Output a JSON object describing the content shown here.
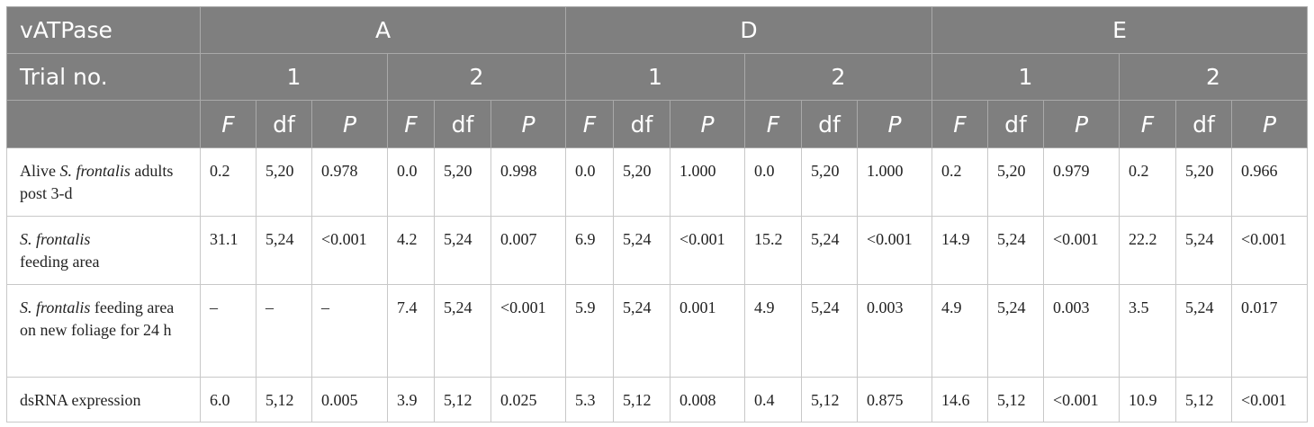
{
  "header": {
    "row1_label": "vATPase",
    "groups": [
      "A",
      "D",
      "E"
    ],
    "row2_label": "Trial no.",
    "trials": [
      "1",
      "2",
      "1",
      "2",
      "1",
      "2"
    ],
    "stats": [
      {
        "label": "F",
        "italic": true
      },
      {
        "label": "df",
        "italic": false
      },
      {
        "label": "P",
        "italic": true
      }
    ]
  },
  "rows": [
    {
      "name": "alive",
      "label": [
        {
          "t": "Alive ",
          "i": false
        },
        {
          "t": "S. frontalis",
          "i": true
        },
        {
          "t": " adults post 3-d",
          "i": false
        }
      ],
      "cells": [
        "0.2",
        "5,20",
        "0.978",
        "0.0",
        "5,20",
        "0.998",
        "0.0",
        "5,20",
        "1.000",
        "0.0",
        "5,20",
        "1.000",
        "0.2",
        "5,20",
        "0.979",
        "0.2",
        "5,20",
        "0.966"
      ]
    },
    {
      "name": "feeding-area",
      "label": [
        {
          "t": "S. frontalis",
          "i": true
        },
        {
          "t": "\nfeeding area",
          "i": false
        }
      ],
      "cells": [
        "31.1",
        "5,24",
        "<0.001",
        "4.2",
        "5,24",
        "0.007",
        "6.9",
        "5,24",
        "<0.001",
        "15.2",
        "5,24",
        "<0.001",
        "14.9",
        "5,24",
        "<0.001",
        "22.2",
        "5,24",
        "<0.001"
      ]
    },
    {
      "name": "feeding-area-new-foliage",
      "label": [
        {
          "t": "S. frontalis",
          "i": true
        },
        {
          "t": " feeding area on new foliage for 24 h",
          "i": false
        }
      ],
      "cells": [
        "–",
        "–",
        "–",
        "7.4",
        "5,24",
        "<0.001",
        "5.9",
        "5,24",
        "0.001",
        "4.9",
        "5,24",
        "0.003",
        "4.9",
        "5,24",
        "0.003",
        "3.5",
        "5,24",
        "0.017"
      ]
    },
    {
      "name": "dsrna-expression",
      "label": [
        {
          "t": "dsRNA expression",
          "i": false
        }
      ],
      "cells": [
        "6.0",
        "5,12",
        "0.005",
        "3.9",
        "5,12",
        "0.025",
        "5.3",
        "5,12",
        "0.008",
        "0.4",
        "5,12",
        "0.875",
        "14.6",
        "5,12",
        "<0.001",
        "10.9",
        "5,12",
        "<0.001"
      ]
    }
  ]
}
